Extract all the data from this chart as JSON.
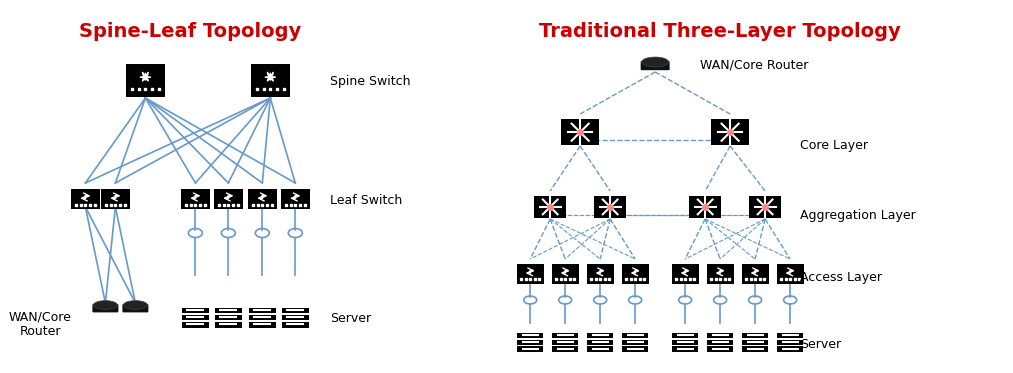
{
  "left_title": "Spine-Leaf Topology",
  "right_title": "Traditional Three-Layer Topology",
  "title_color": "#CC0000",
  "title_fontsize": 14,
  "line_color_solid": "#6699CC",
  "line_color_dashed": "#6699CC",
  "bg_color": "#FFFFFF",
  "label_fontsize": 9,
  "left_labels": {
    "spine_switch": "Spine Switch",
    "leaf_switch": "Leaf Switch",
    "server": "Server",
    "wan_router": "WAN/Core\nRouter"
  },
  "right_labels": {
    "wan_router": "WAN/Core Router",
    "core_layer": "Core Layer",
    "aggregation_layer": "Aggregation Layer",
    "access_layer": "Access Layer",
    "server": "Server"
  }
}
